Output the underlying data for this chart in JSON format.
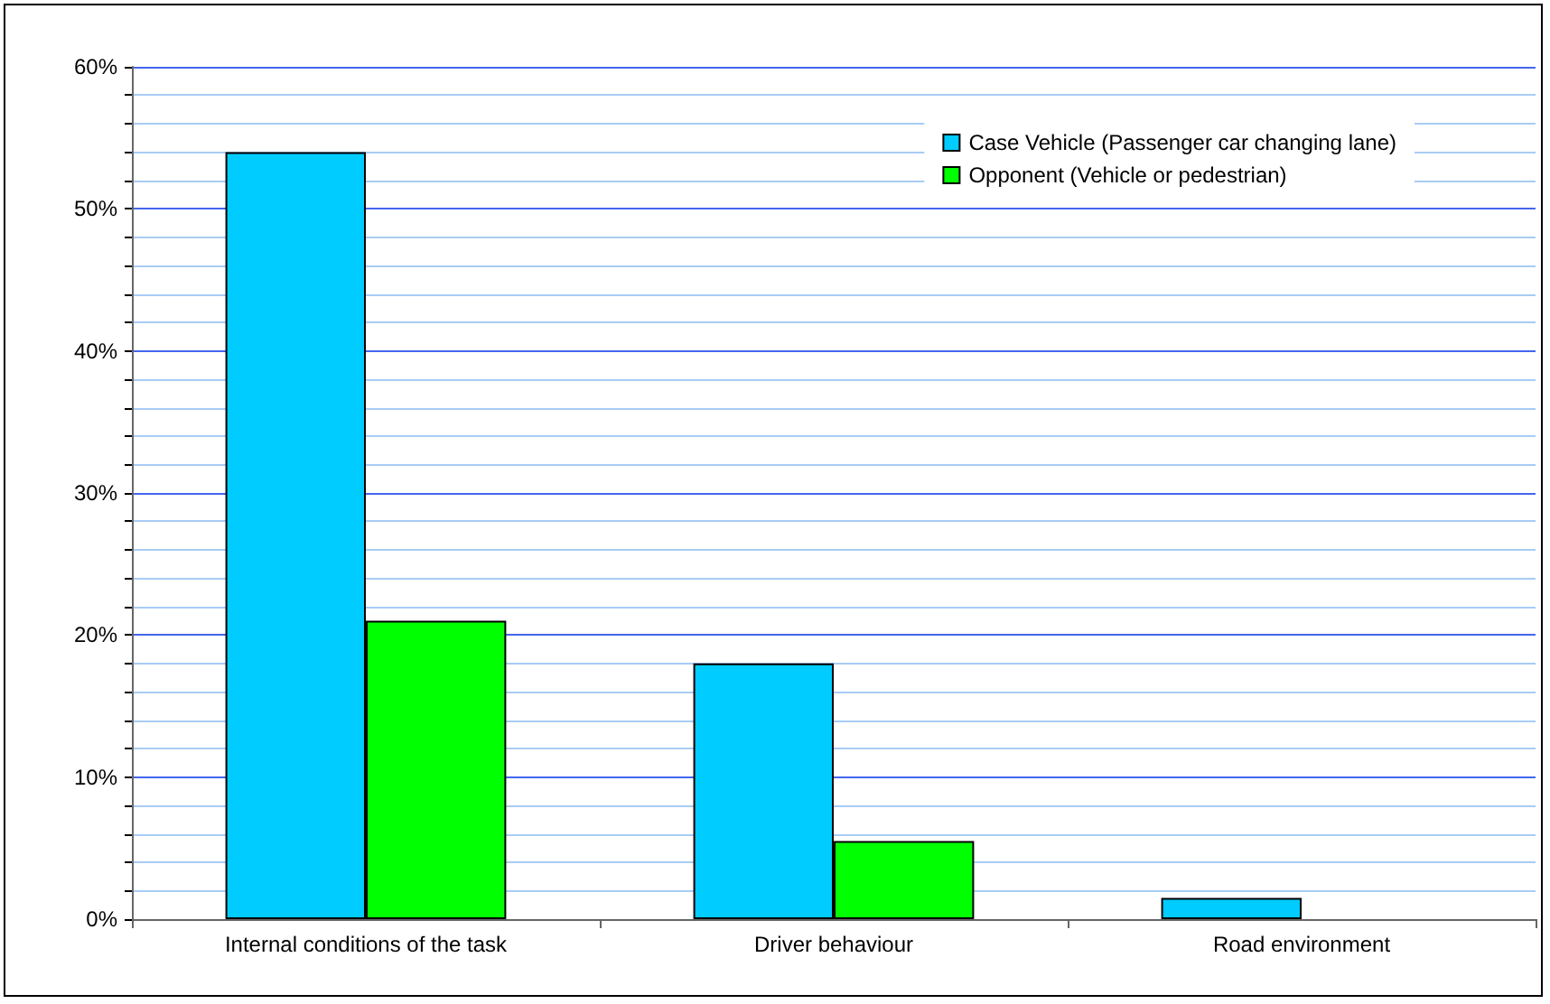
{
  "chart_data": {
    "type": "bar",
    "categories": [
      "Internal conditions of the task",
      "Driver behaviour",
      "Road environment"
    ],
    "series": [
      {
        "name": "Case Vehicle (Passenger car changing lane)",
        "color": "#00ccff",
        "values": [
          54,
          18,
          1.5
        ]
      },
      {
        "name": "Opponent (Vehicle or pedestrian)",
        "color": "#00ff00",
        "values": [
          21,
          5.5,
          null
        ]
      }
    ],
    "ylim": [
      0,
      60
    ],
    "yticks": [
      {
        "value": 0,
        "label": "0%"
      },
      {
        "value": 2,
        "label": null
      },
      {
        "value": 4,
        "label": null
      },
      {
        "value": 6,
        "label": null
      },
      {
        "value": 8,
        "label": null
      },
      {
        "value": 10,
        "label": "10%"
      },
      {
        "value": 12,
        "label": null
      },
      {
        "value": 14,
        "label": null
      },
      {
        "value": 16,
        "label": null
      },
      {
        "value": 18,
        "label": null
      },
      {
        "value": 20,
        "label": "20%"
      },
      {
        "value": 22,
        "label": null
      },
      {
        "value": 24,
        "label": null
      },
      {
        "value": 26,
        "label": null
      },
      {
        "value": 28,
        "label": null
      },
      {
        "value": 30,
        "label": "30%"
      },
      {
        "value": 32,
        "label": null
      },
      {
        "value": 34,
        "label": null
      },
      {
        "value": 36,
        "label": null
      },
      {
        "value": 38,
        "label": null
      },
      {
        "value": 40,
        "label": "40%"
      },
      {
        "value": 42,
        "label": null
      },
      {
        "value": 44,
        "label": null
      },
      {
        "value": 46,
        "label": null
      },
      {
        "value": 48,
        "label": null
      },
      {
        "value": 50,
        "label": "50%"
      },
      {
        "value": 52,
        "label": null
      },
      {
        "value": 54,
        "label": null
      },
      {
        "value": 56,
        "label": null
      },
      {
        "value": 58,
        "label": null
      },
      {
        "value": 60,
        "label": "60%"
      }
    ],
    "grid": "y",
    "legend": "top right"
  }
}
